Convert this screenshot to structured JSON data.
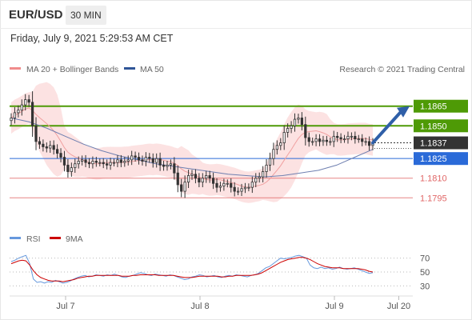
{
  "header": {
    "symbol": "EUR/USD",
    "timeframe": "30 MIN",
    "datetime": "Friday, July 9, 2021 5:29:53 AM CET"
  },
  "legend": {
    "items": [
      {
        "label": "MA 20 + Bollinger Bands",
        "color": "#f08c8c"
      },
      {
        "label": "MA 50",
        "color": "#2f5597"
      }
    ],
    "copyright": "Research © 2021 Trading Central"
  },
  "colors": {
    "green": "#4e9a06",
    "blue": "#2a6ad8",
    "red": "#e06666",
    "candle": "#333333",
    "band": "#fbd8d8",
    "ma20": "#f0a0a0",
    "ma50": "#6e7fb0",
    "rsi": "#6699dd",
    "rsi_ma": "#cc0000",
    "arrow": "#2f5fa8",
    "current_bg": "#333333"
  },
  "chart_data": {
    "type": "candlestick",
    "yrange": [
      1.1775,
      1.1885
    ],
    "x_ticks": [
      {
        "label": "Jul 7",
        "x": 20
      },
      {
        "label": "Jul 8",
        "x": 68
      },
      {
        "label": "Jul 9",
        "x": 116
      },
      {
        "label": "Jul 20",
        "x": 139
      }
    ],
    "levels": [
      {
        "label": "1.1865",
        "value": 1.1865,
        "kind": "resistance"
      },
      {
        "label": "1.1850",
        "value": 1.185,
        "kind": "resistance"
      },
      {
        "label": "1.1825",
        "value": 1.1825,
        "kind": "pivot"
      },
      {
        "label": "1.1810",
        "value": 1.181,
        "kind": "support"
      },
      {
        "label": "1.1795",
        "value": 1.1795,
        "kind": "support"
      }
    ],
    "current_price": {
      "label": "1.1837",
      "value": 1.1837
    },
    "closes": [
      1.1856,
      1.186,
      1.1862,
      1.1866,
      1.187,
      1.1868,
      1.185,
      1.1838,
      1.1836,
      1.1834,
      1.1833,
      1.1835,
      1.1832,
      1.1829,
      1.1826,
      1.182,
      1.1815,
      1.1818,
      1.1821,
      1.1823,
      1.1824,
      1.1822,
      1.1821,
      1.1823,
      1.1822,
      1.1822,
      1.1821,
      1.182,
      1.1822,
      1.1822,
      1.1824,
      1.1822,
      1.1823,
      1.1824,
      1.1827,
      1.1826,
      1.1824,
      1.1823,
      1.1826,
      1.1825,
      1.1822,
      1.1825,
      1.182,
      1.1819,
      1.182,
      1.1821,
      1.1814,
      1.1805,
      1.18,
      1.1807,
      1.1812,
      1.1813,
      1.181,
      1.1807,
      1.181,
      1.1812,
      1.181,
      1.1806,
      1.1803,
      1.1804,
      1.1806,
      1.1806,
      1.1803,
      1.18,
      1.18,
      1.1802,
      1.1803,
      1.1803,
      1.1807,
      1.181,
      1.1811,
      1.1815,
      1.182,
      1.1825,
      1.1832,
      1.1835,
      1.1837,
      1.1845,
      1.1848,
      1.185,
      1.1855,
      1.1856,
      1.1851,
      1.1841,
      1.1838,
      1.1838,
      1.184,
      1.1838,
      1.1839,
      1.1838,
      1.1838,
      1.1842,
      1.1841,
      1.184,
      1.184,
      1.1842,
      1.1842,
      1.184,
      1.184,
      1.1838,
      1.1838,
      1.1835,
      1.1837
    ],
    "ma50_points": [
      1.1856,
      1.1853,
      1.1848,
      1.1842,
      1.1836,
      1.1831,
      1.1827,
      1.1824,
      1.1821,
      1.1819,
      1.1817,
      1.1815,
      1.1813,
      1.1812,
      1.1811,
      1.1812,
      1.1814,
      1.1816,
      1.182,
      1.1826,
      1.1832
    ],
    "rsi": {
      "legend": [
        "RSI",
        "9MA"
      ],
      "ticks": [
        70,
        50,
        30
      ],
      "yrange": [
        20,
        80
      ],
      "values": [
        65,
        67,
        70,
        72,
        74,
        62,
        40,
        35,
        36,
        34,
        36,
        35,
        38,
        36,
        34,
        35,
        37,
        40,
        42,
        44,
        45,
        43,
        44,
        46,
        45,
        44,
        46,
        45,
        47,
        45,
        43,
        42,
        44,
        45,
        47,
        49,
        48,
        46,
        45,
        47,
        46,
        45,
        44,
        46,
        45,
        43,
        41,
        39,
        40,
        43,
        44,
        46,
        45,
        43,
        44,
        45,
        43,
        42,
        44,
        45,
        44,
        46,
        45,
        44,
        43,
        45,
        46,
        48,
        52,
        56,
        58,
        62,
        66,
        70,
        69,
        70,
        71,
        73,
        74,
        72,
        70,
        60,
        56,
        55,
        57,
        55,
        56,
        54,
        55,
        57,
        55,
        54,
        55,
        56,
        54,
        52,
        50,
        48,
        49
      ],
      "ma": [
        62,
        64,
        66,
        67,
        66,
        60,
        52,
        46,
        42,
        40,
        38,
        37,
        37,
        37,
        36,
        37,
        38,
        39,
        41,
        42,
        43,
        44,
        44,
        45,
        45,
        45,
        45,
        45,
        45,
        45,
        44,
        44,
        44,
        45,
        45,
        46,
        46,
        46,
        46,
        46,
        45,
        45,
        45,
        45,
        45,
        44,
        43,
        42,
        42,
        42,
        43,
        44,
        44,
        44,
        44,
        44,
        44,
        43,
        43,
        44,
        44,
        45,
        45,
        45,
        45,
        45,
        46,
        47,
        49,
        52,
        55,
        58,
        61,
        64,
        66,
        68,
        69,
        70,
        71,
        71,
        70,
        68,
        65,
        62,
        60,
        58,
        57,
        56,
        56,
        56,
        55,
        55,
        55,
        55,
        55,
        54,
        53,
        51,
        50
      ]
    }
  }
}
